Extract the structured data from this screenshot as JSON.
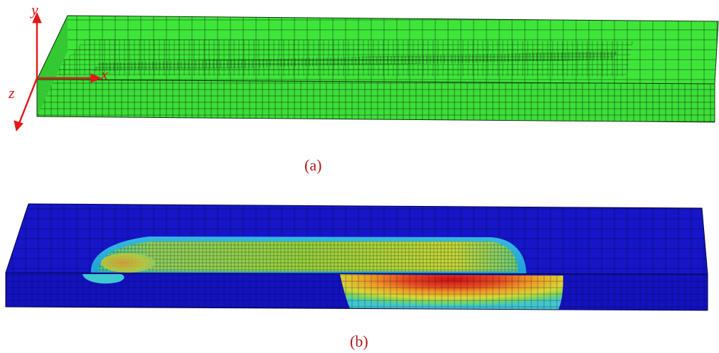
{
  "figure": {
    "panel_a": {
      "caption": "(a)",
      "axes": {
        "y_label": "y",
        "x_label": "x",
        "z_label": "z"
      }
    },
    "panel_b": {
      "caption": "(b)"
    },
    "colors": {
      "mesh_green": "#3ee63a",
      "mesh_line": "#0f3d0f",
      "cool_blue": "#1414c8",
      "axis_red": "#e01818",
      "caption_red": "#b01818"
    }
  }
}
